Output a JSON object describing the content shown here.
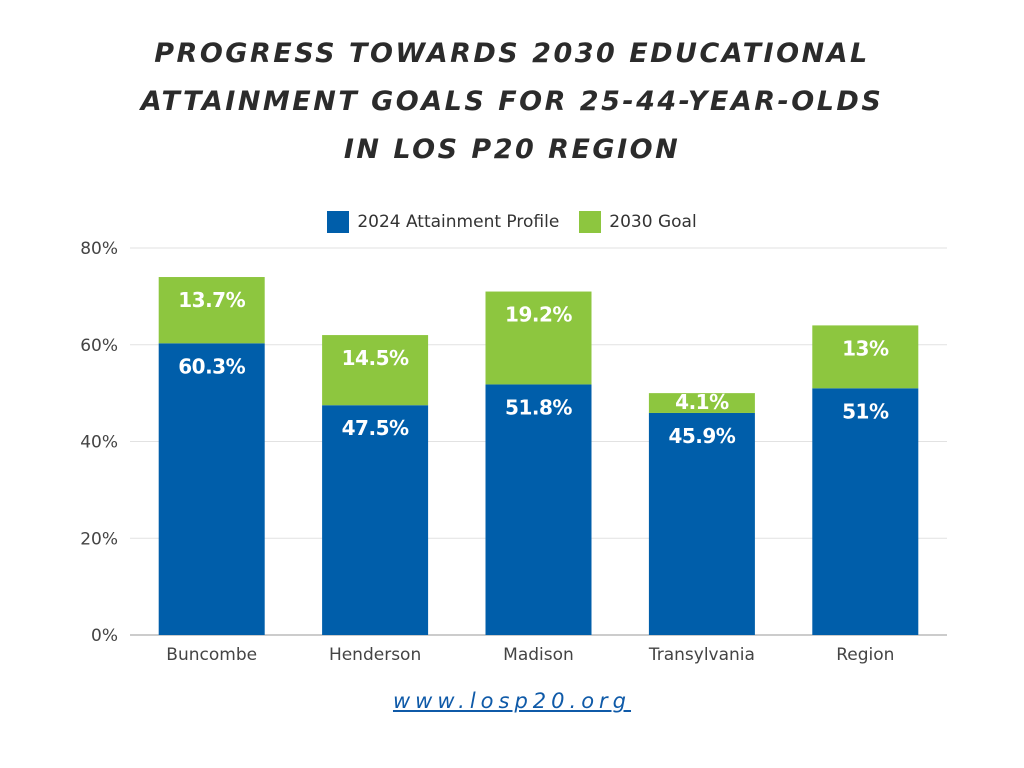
{
  "title_lines": [
    "PROGRESS TOWARDS 2030 EDUCATIONAL",
    "ATTAINMENT GOALS FOR 25-44-YEAR-OLDS",
    "IN LOS P20 REGION"
  ],
  "footer_link": "www.losp20.org",
  "chart_data": {
    "type": "bar",
    "stacked": true,
    "categories": [
      "Buncombe",
      "Henderson",
      "Madison",
      "Transylvania",
      "Region"
    ],
    "series": [
      {
        "name": "2024 Attainment Profile",
        "color": "#005eaa",
        "values": [
          60.3,
          47.5,
          51.8,
          45.9,
          51
        ],
        "labels": [
          "60.3%",
          "47.5%",
          "51.8%",
          "45.9%",
          "51%"
        ]
      },
      {
        "name": "2030 Goal",
        "color": "#8dc63f",
        "values": [
          13.7,
          14.5,
          19.2,
          4.1,
          13
        ],
        "labels": [
          "13.7%",
          "14.5%",
          "19.2%",
          "4.1%",
          "13%"
        ]
      }
    ],
    "ylim": [
      0,
      80
    ],
    "yticks": [
      0,
      20,
      40,
      60,
      80
    ],
    "ytick_labels": [
      "0%",
      "20%",
      "40%",
      "60%",
      "80%"
    ],
    "grid": true,
    "legend_position": "top-center"
  }
}
